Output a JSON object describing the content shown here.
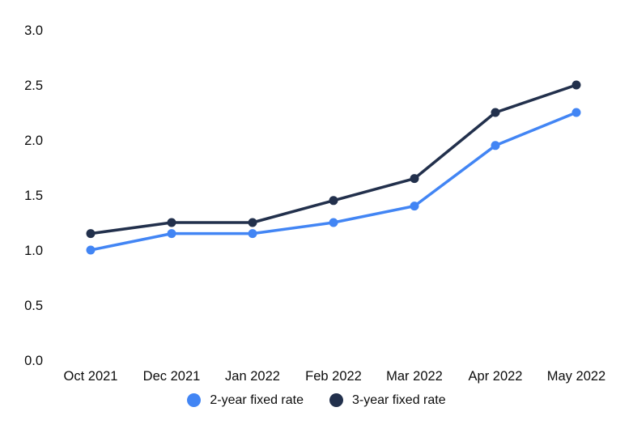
{
  "chart_data": {
    "type": "line",
    "title": "",
    "xlabel": "",
    "ylabel": "",
    "categories": [
      "Oct 2021",
      "Dec 2021",
      "Jan 2022",
      "Feb 2022",
      "Mar 2022",
      "Apr 2022",
      "May 2022"
    ],
    "series": [
      {
        "name": "2-year fixed rate",
        "color": "#4285f4",
        "values": [
          1.0,
          1.15,
          1.15,
          1.25,
          1.4,
          1.95,
          2.25
        ]
      },
      {
        "name": "3-year fixed rate",
        "color": "#22304c",
        "values": [
          1.15,
          1.25,
          1.25,
          1.45,
          1.65,
          2.25,
          2.5
        ]
      }
    ],
    "ylim": [
      0.0,
      3.0
    ],
    "yticks": [
      3.0,
      2.5,
      2.0,
      1.5,
      1.0,
      0.5,
      0.0
    ],
    "ytick_labels": [
      "3.0",
      "2.5",
      "2.0",
      "1.5",
      "1.0",
      "0.5",
      "0.0"
    ],
    "grid": false,
    "axis_lines": false,
    "marker": "circle",
    "legend_position": "bottom"
  },
  "colors": {
    "background": "#ffffff",
    "text": "#0c0c0c",
    "series_2yr": "#4285f4",
    "series_3yr": "#22304c"
  }
}
